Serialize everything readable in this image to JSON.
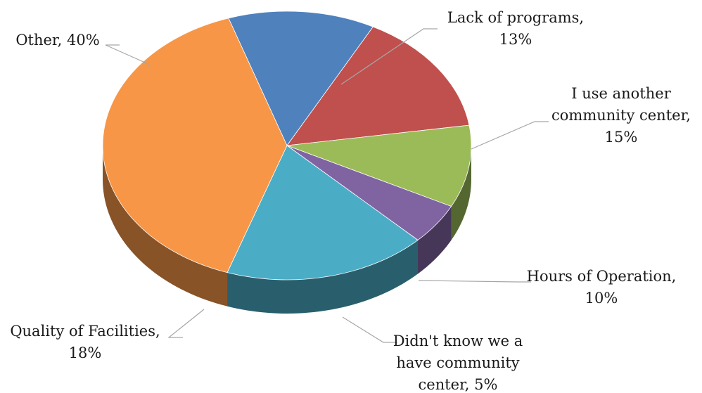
{
  "chart_data": {
    "type": "pie",
    "title": "",
    "slices": [
      {
        "label_lines": [
          "Lack of programs,",
          "13%"
        ],
        "name": "Lack of programs",
        "value": 13,
        "color": "#4f81bd"
      },
      {
        "label_lines": [
          "I use another",
          "community center,",
          "15%"
        ],
        "name": "I use another community center",
        "value": 15,
        "color": "#c0504d"
      },
      {
        "label_lines": [
          "Hours of Operation,",
          "10%"
        ],
        "name": "Hours of Operation",
        "value": 10,
        "color": "#9bbb59"
      },
      {
        "label_lines": [
          "Didn't know we a",
          "have community",
          "center, 5%"
        ],
        "name": "Didn't know we a have community center",
        "value": 5,
        "color": "#8064a2"
      },
      {
        "label_lines": [
          "Quality of Facilities,",
          "18%"
        ],
        "name": "Quality of Facilities",
        "value": 18,
        "color": "#4bacc6"
      },
      {
        "label_lines": [
          "Other, 40%"
        ],
        "name": "Other",
        "value": 40,
        "color": "#f79646"
      }
    ],
    "style": "3d-exploded-none",
    "legend": "none"
  }
}
